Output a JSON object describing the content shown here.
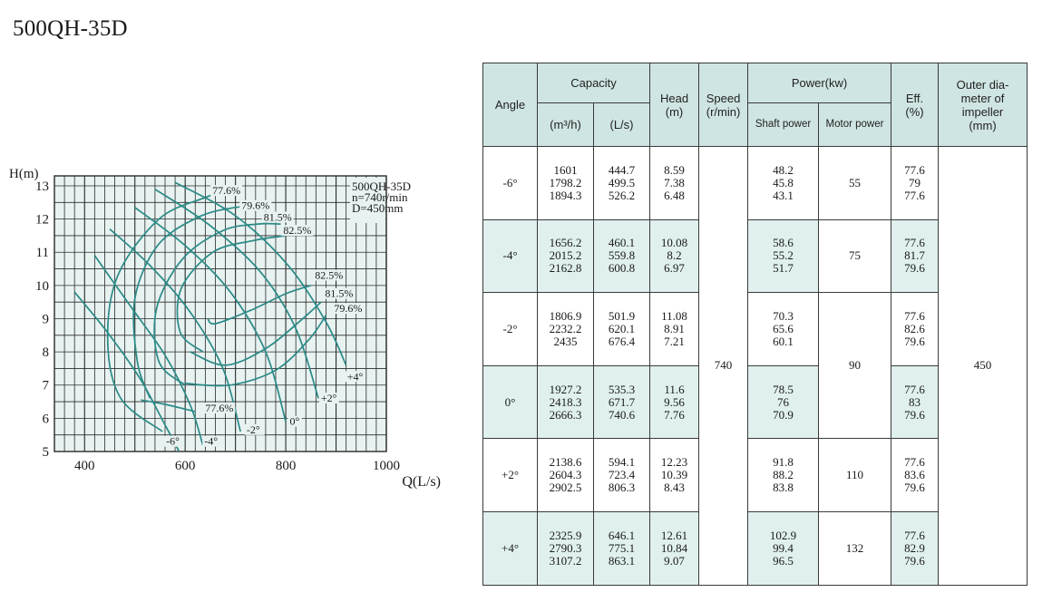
{
  "page": {
    "title": "500QH-35D"
  },
  "chart_data": {
    "type": "line",
    "title": "",
    "xlabel": "Q(L/s)",
    "ylabel": "H(m)",
    "xlim": [
      340,
      1000
    ],
    "ylim": [
      5,
      13.3
    ],
    "grid": true,
    "x_ticks": [
      400,
      600,
      800,
      1000
    ],
    "y_ticks": [
      5,
      6,
      7,
      8,
      9,
      10,
      11,
      12,
      13
    ],
    "x_tick_labels": [
      "400",
      "600",
      "800",
      "1000"
    ],
    "y_tick_labels": [
      "5",
      "6",
      "7",
      "8",
      "9",
      "10",
      "11",
      "12",
      "13"
    ],
    "legend_box": {
      "line1": "500QH-35D",
      "line2": "n=740r/min",
      "line3": "D=450mm"
    },
    "head_curves": [
      {
        "name": "-6°",
        "points": [
          [
            380,
            9.8
          ],
          [
            445,
            8.6
          ],
          [
            510,
            7.2
          ],
          [
            560,
            5.8
          ],
          [
            588,
            5.0
          ]
        ]
      },
      {
        "name": "-4°",
        "points": [
          [
            420,
            10.9
          ],
          [
            490,
            9.4
          ],
          [
            560,
            7.9
          ],
          [
            610,
            6.4
          ],
          [
            635,
            5.2
          ]
        ]
      },
      {
        "name": "-2°",
        "points": [
          [
            450,
            11.7
          ],
          [
            530,
            10.6
          ],
          [
            610,
            9.2
          ],
          [
            675,
            7.5
          ],
          [
            710,
            5.6
          ]
        ]
      },
      {
        "name": "0°",
        "points": [
          [
            500,
            12.35
          ],
          [
            600,
            11.2
          ],
          [
            690,
            9.8
          ],
          [
            760,
            8.0
          ],
          [
            800,
            5.9
          ]
        ]
      },
      {
        "name": "+2°",
        "points": [
          [
            540,
            12.9
          ],
          [
            650,
            11.8
          ],
          [
            750,
            10.4
          ],
          [
            820,
            8.7
          ],
          [
            865,
            6.6
          ]
        ]
      },
      {
        "name": "+4°",
        "points": [
          [
            580,
            13.1
          ],
          [
            700,
            12.1
          ],
          [
            805,
            10.6
          ],
          [
            880,
            8.9
          ],
          [
            920,
            7.6
          ]
        ]
      }
    ],
    "efficiency_contours": [
      {
        "name": "77.6%",
        "closed": false,
        "points": [
          [
            555,
            5.6
          ],
          [
            472,
            6.6
          ],
          [
            446,
            8.3
          ],
          [
            466,
            10.3
          ],
          [
            548,
            12.0
          ],
          [
            640,
            12.65
          ],
          [
            690,
            12.9
          ]
        ]
      },
      {
        "name": "79.6%",
        "closed": false,
        "points": [
          [
            530,
            6.6
          ],
          [
            505,
            7.7
          ],
          [
            500,
            9.6
          ],
          [
            545,
            11.2
          ],
          [
            625,
            12.05
          ],
          [
            700,
            12.35
          ],
          [
            745,
            12.35
          ]
        ]
      },
      {
        "name": "81.5%",
        "closed": false,
        "points": [
          [
            600,
            7.0
          ],
          [
            548,
            7.7
          ],
          [
            543,
            9.3
          ],
          [
            595,
            10.8
          ],
          [
            675,
            11.65
          ],
          [
            745,
            11.85
          ],
          [
            790,
            11.85
          ]
        ]
      },
      {
        "name": "82.5%",
        "closed": false,
        "points": [
          [
            635,
            8.0
          ],
          [
            590,
            8.6
          ],
          [
            592,
            9.9
          ],
          [
            655,
            11.0
          ],
          [
            735,
            11.35
          ],
          [
            800,
            11.5
          ]
        ]
      },
      {
        "name": "82.5% ",
        "closed": false,
        "points": [
          [
            645,
            9.0
          ],
          [
            660,
            8.85
          ],
          [
            730,
            9.25
          ],
          [
            800,
            9.75
          ],
          [
            850,
            10.0
          ]
        ]
      },
      {
        "name": "81.5% ",
        "closed": false,
        "points": [
          [
            610,
            8.0
          ],
          [
            680,
            7.6
          ],
          [
            760,
            8.1
          ],
          [
            830,
            8.95
          ],
          [
            870,
            9.5
          ]
        ]
      },
      {
        "name": "79.6% ",
        "closed": false,
        "points": [
          [
            600,
            7.05
          ],
          [
            690,
            7.0
          ],
          [
            780,
            7.45
          ],
          [
            845,
            8.35
          ],
          [
            880,
            9.1
          ]
        ]
      },
      {
        "name": "77.6% ",
        "closed": false,
        "points": [
          [
            512,
            6.55
          ],
          [
            560,
            6.42
          ],
          [
            620,
            6.2
          ]
        ]
      }
    ],
    "curve_labels": [
      {
        "text": "77.6%",
        "x": 654,
        "y": 12.75
      },
      {
        "text": "79.6%",
        "x": 712,
        "y": 12.3
      },
      {
        "text": "81.5%",
        "x": 756,
        "y": 11.95
      },
      {
        "text": "82.5%",
        "x": 795,
        "y": 11.55
      },
      {
        "text": "82.5%",
        "x": 858,
        "y": 10.2
      },
      {
        "text": "81.5%",
        "x": 878,
        "y": 9.65
      },
      {
        "text": "79.6%",
        "x": 896,
        "y": 9.2
      },
      {
        "text": "77.6%",
        "x": 640,
        "y": 6.2
      },
      {
        "text": "-6°",
        "x": 562,
        "y": 5.2
      },
      {
        "text": "-4°",
        "x": 638,
        "y": 5.2
      },
      {
        "text": "-2°",
        "x": 722,
        "y": 5.55
      },
      {
        "text": "0°",
        "x": 808,
        "y": 5.8
      },
      {
        "text": "+2°",
        "x": 870,
        "y": 6.5
      },
      {
        "text": "+4°",
        "x": 922,
        "y": 7.15
      }
    ]
  },
  "table": {
    "headers": {
      "angle": "Angle",
      "capacity": "Capacity",
      "capacity_m3h": "(m³/h)",
      "capacity_ls": "(L/s)",
      "head": "Head",
      "head_unit": "(m)",
      "speed": "Speed",
      "speed_unit": "(r/min)",
      "power": "Power(kw)",
      "shaft_power": "Shaft power",
      "motor_power": "Motor power",
      "eff": "Eff.",
      "eff_unit": "(%)",
      "diameter_1": "Outer dia-",
      "diameter_2": "meter of",
      "diameter_3": "impeller",
      "diameter_4": "(mm)"
    },
    "speed": "740",
    "impeller_diameter": "450",
    "rows": [
      {
        "angle": "-6°",
        "cap_m3h": [
          "1601",
          "1798.2",
          "1894.3"
        ],
        "cap_ls": [
          "444.7",
          "499.5",
          "526.2"
        ],
        "head": [
          "8.59",
          "7.38",
          "6.48"
        ],
        "shaft": [
          "48.2",
          "45.8",
          "43.1"
        ],
        "motor": "55",
        "eff": [
          "77.6",
          "79",
          "77.6"
        ]
      },
      {
        "angle": "-4°",
        "cap_m3h": [
          "1656.2",
          "2015.2",
          "2162.8"
        ],
        "cap_ls": [
          "460.1",
          "559.8",
          "600.8"
        ],
        "head": [
          "10.08",
          "8.2",
          "6.97"
        ],
        "shaft": [
          "58.6",
          "55.2",
          "51.7"
        ],
        "motor": "75",
        "eff": [
          "77.6",
          "81.7",
          "79.6"
        ]
      },
      {
        "angle": "-2°",
        "cap_m3h": [
          "1806.9",
          "2232.2",
          "2435"
        ],
        "cap_ls": [
          "501.9",
          "620.1",
          "676.4"
        ],
        "head": [
          "11.08",
          "8.91",
          "7.21"
        ],
        "shaft": [
          "70.3",
          "65.6",
          "60.1"
        ],
        "motor": "90",
        "eff": [
          "77.6",
          "82.6",
          "79.6"
        ]
      },
      {
        "angle": "0°",
        "cap_m3h": [
          "1927.2",
          "2418.3",
          "2666.3"
        ],
        "cap_ls": [
          "535.3",
          "671.7",
          "740.6"
        ],
        "head": [
          "11.6",
          "9.56",
          "7.76"
        ],
        "shaft": [
          "78.5",
          "76",
          "70.9"
        ],
        "motor": "90",
        "eff": [
          "77.6",
          "83",
          "79.6"
        ]
      },
      {
        "angle": "+2°",
        "cap_m3h": [
          "2138.6",
          "2604.3",
          "2902.5"
        ],
        "cap_ls": [
          "594.1",
          "723.4",
          "806.3"
        ],
        "head": [
          "12.23",
          "10.39",
          "8.43"
        ],
        "shaft": [
          "91.8",
          "88.2",
          "83.8"
        ],
        "motor": "110",
        "eff": [
          "77.6",
          "83.6",
          "79.6"
        ]
      },
      {
        "angle": "+4°",
        "cap_m3h": [
          "2325.9",
          "2790.3",
          "3107.2"
        ],
        "cap_ls": [
          "646.1",
          "775.1",
          "863.1"
        ],
        "head": [
          "12.61",
          "10.84",
          "9.07"
        ],
        "shaft": [
          "102.9",
          "99.4",
          "96.5"
        ],
        "motor": "132",
        "eff": [
          "77.6",
          "82.9",
          "79.6"
        ]
      }
    ]
  },
  "colors": {
    "curve": "#2a8a86",
    "grid": "#2b2b2b",
    "plot_bg": "#e7f2f1",
    "header_bg": "#cfe5e3",
    "row_shade": "#dff0ee"
  }
}
